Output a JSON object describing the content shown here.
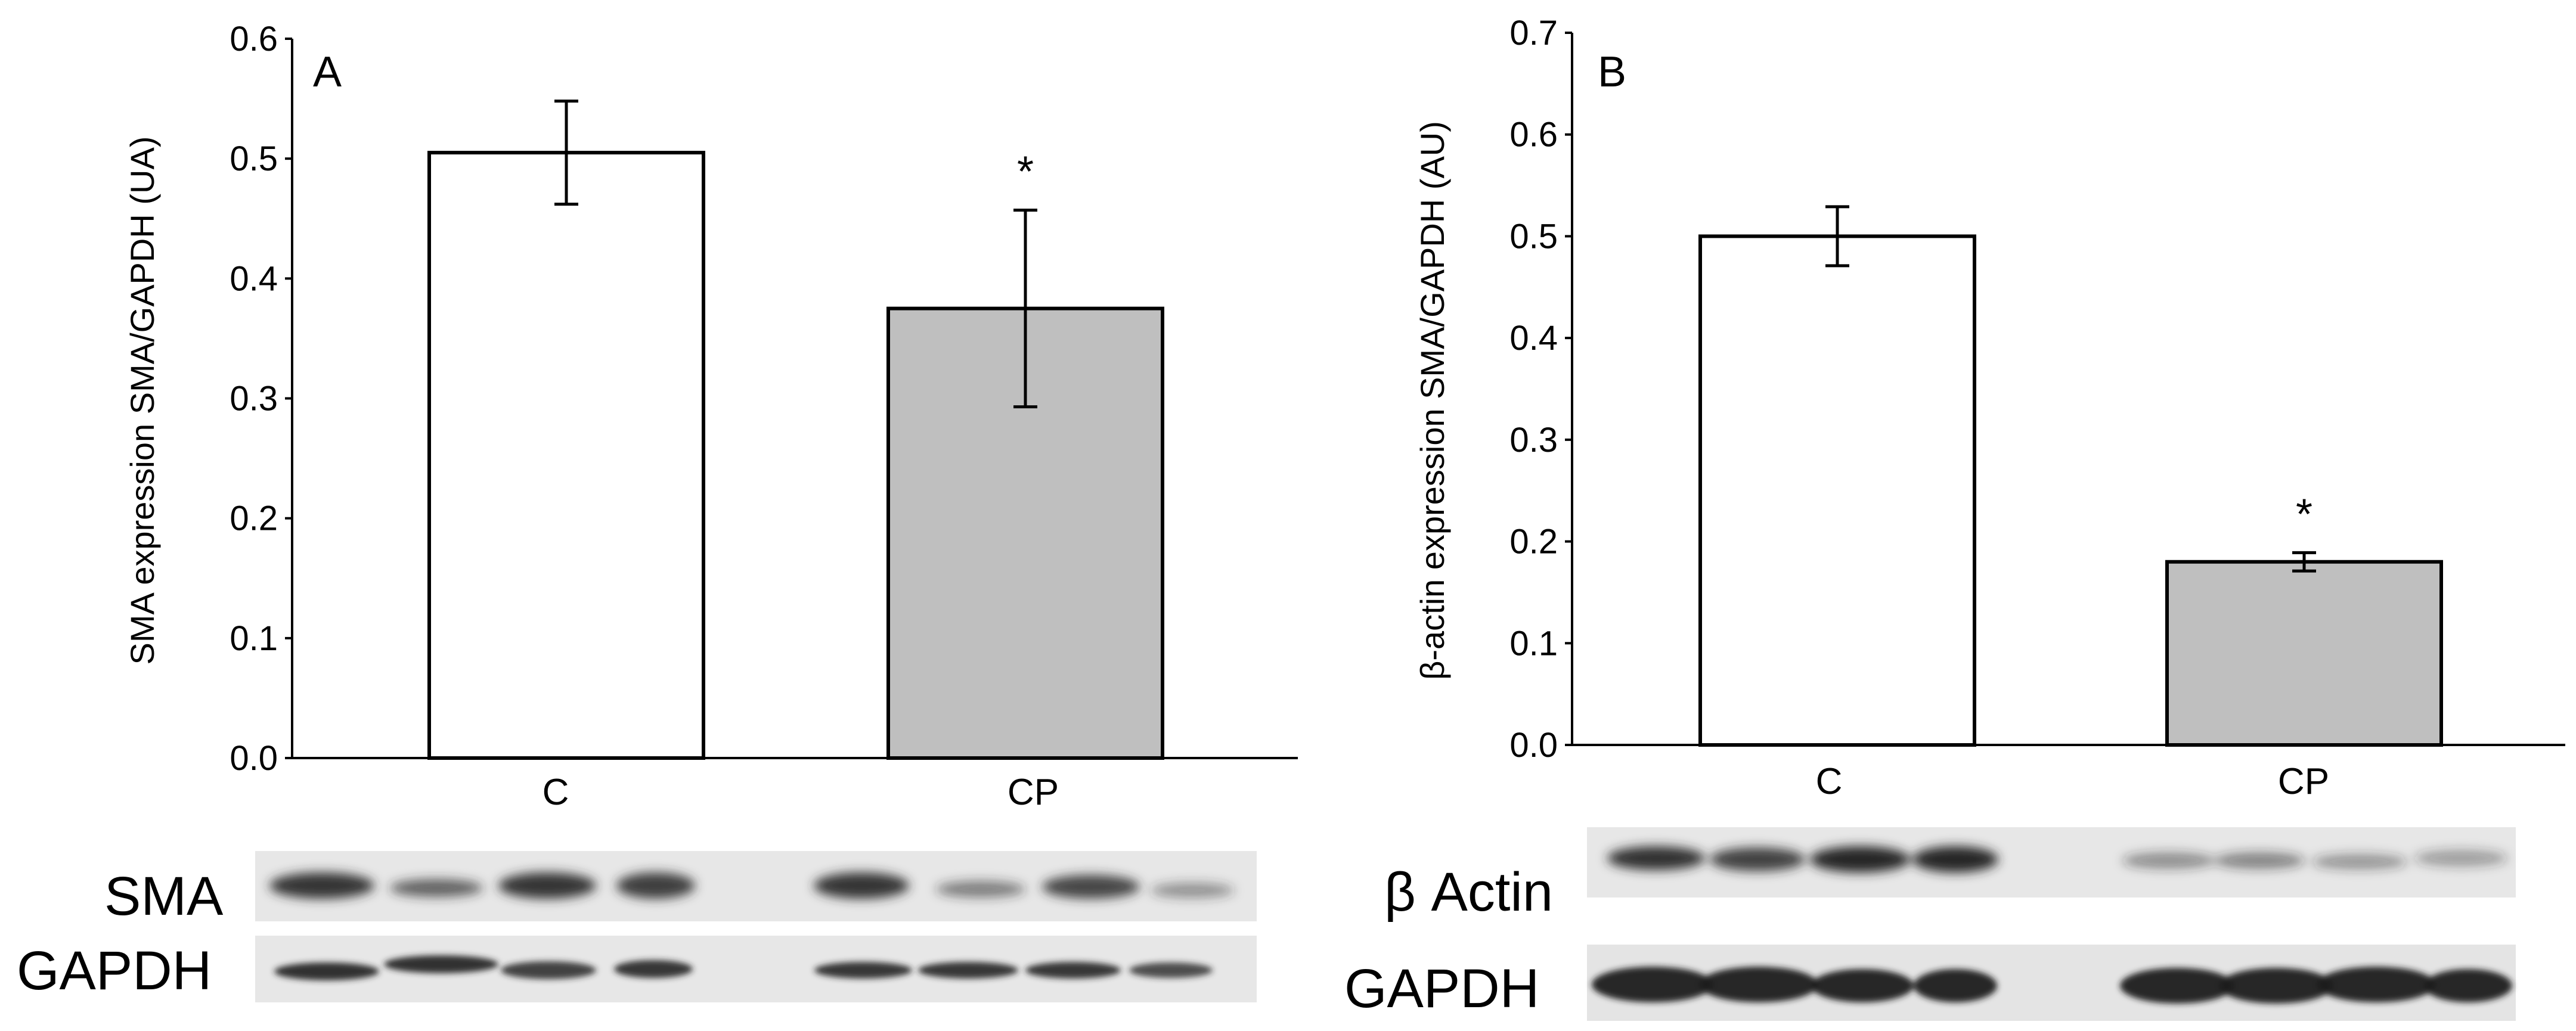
{
  "chart_data": [
    {
      "type": "bar",
      "panel_label": "A",
      "ylabel": "SMA expression SMA/GAPDH (UA)",
      "categories": [
        "C",
        "CP"
      ],
      "values": [
        0.505,
        0.375
      ],
      "errors": [
        0.043,
        0.082
      ],
      "significance": [
        "",
        "*"
      ],
      "bar_colors": [
        "#ffffff",
        "#bfbfbf"
      ],
      "ylim": [
        0,
        0.6
      ],
      "yticks": [
        "0.0",
        "0.1",
        "0.2",
        "0.3",
        "0.4",
        "0.5",
        "0.6"
      ],
      "grid": false,
      "blot_labels": [
        "SMA",
        "GAPDH"
      ]
    },
    {
      "type": "bar",
      "panel_label": "B",
      "ylabel": "β-actin expression SMA/GAPDH (AU)",
      "categories": [
        "C",
        "CP"
      ],
      "values": [
        0.5,
        0.18
      ],
      "errors": [
        0.029,
        0.009
      ],
      "significance": [
        "",
        "*"
      ],
      "bar_colors": [
        "#ffffff",
        "#bfbfbf"
      ],
      "ylim": [
        0,
        0.7
      ],
      "yticks": [
        "0.0",
        "0.1",
        "0.2",
        "0.3",
        "0.4",
        "0.5",
        "0.6",
        "0.7"
      ],
      "grid": false,
      "blot_labels": [
        "β Actin",
        "GAPDH"
      ]
    }
  ]
}
